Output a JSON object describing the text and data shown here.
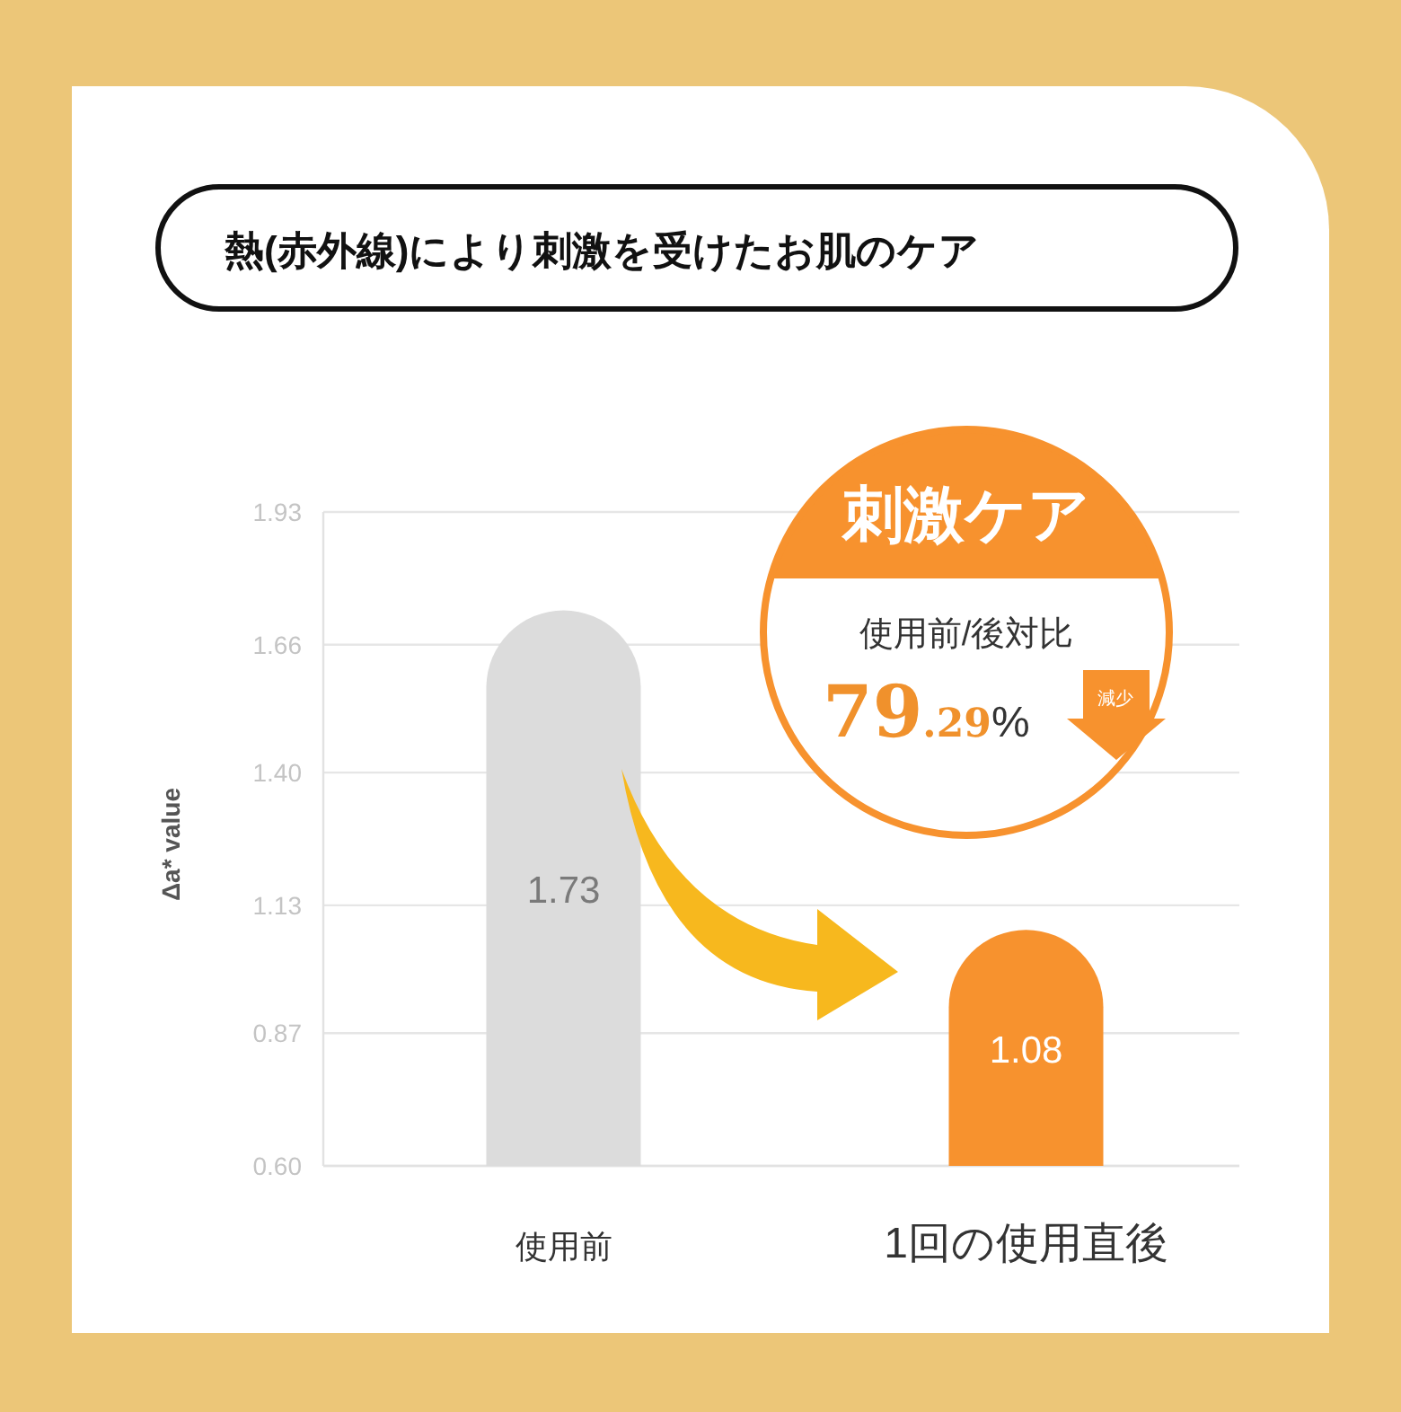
{
  "chart_data": {
    "type": "bar",
    "title": "熱(赤外線)により刺激を受けたお肌のケア",
    "ylabel": "Δa* value",
    "categories": [
      "使用前",
      "1回の使用直後"
    ],
    "values": [
      1.73,
      1.08
    ],
    "colors": [
      "#dcdcdc",
      "#f7922e"
    ],
    "data_labels": true,
    "ylim": [
      0.6,
      1.93
    ],
    "yticks": [
      {
        "value": 0.6,
        "label": "0.60"
      },
      0.87,
      1.13,
      {
        "value": 1.4,
        "label": "1.40"
      },
      1.66,
      1.93
    ],
    "grid": "y",
    "annotations": [
      "刺激ケア",
      "使用前/後対比",
      "79.29%",
      "減少"
    ]
  }
}
